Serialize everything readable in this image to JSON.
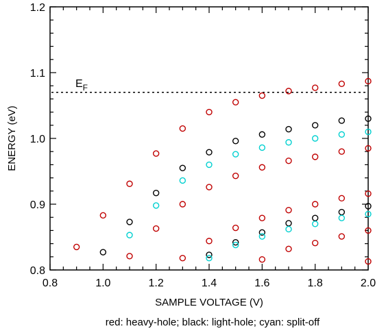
{
  "chart_data": {
    "type": "scatter",
    "xlabel": "SAMPLE VOLTAGE (V)",
    "ylabel": "ENERGY (eV)",
    "xlim": [
      0.8,
      2.0
    ],
    "ylim": [
      0.8,
      1.2
    ],
    "xticks": [
      "0.8",
      "1.0",
      "1.2",
      "1.4",
      "1.6",
      "1.8",
      "2.0"
    ],
    "yticks": [
      "0.8",
      "0.9",
      "1.0",
      "1.1",
      "1.2"
    ],
    "caption": "red: heavy-hole; black: light-hole; cyan: split-off",
    "reference_line": {
      "label_main": "E",
      "label_sub": "F",
      "y": 1.07,
      "style": "dotted"
    },
    "series": [
      {
        "color": "#c00000",
        "points": [
          [
            0.9,
            0.835
          ],
          [
            1.0,
            0.883
          ],
          [
            1.1,
            0.931
          ],
          [
            1.1,
            0.821
          ],
          [
            1.2,
            0.977
          ],
          [
            1.2,
            0.863
          ],
          [
            1.3,
            1.015
          ],
          [
            1.3,
            0.9
          ],
          [
            1.3,
            0.818
          ],
          [
            1.4,
            1.04
          ],
          [
            1.4,
            0.926
          ],
          [
            1.4,
            0.844
          ],
          [
            1.5,
            1.055
          ],
          [
            1.5,
            0.943
          ],
          [
            1.5,
            0.864
          ],
          [
            1.6,
            1.065
          ],
          [
            1.6,
            0.956
          ],
          [
            1.6,
            0.879
          ],
          [
            1.6,
            0.816
          ],
          [
            1.7,
            1.072
          ],
          [
            1.7,
            0.966
          ],
          [
            1.7,
            0.891
          ],
          [
            1.7,
            0.832
          ],
          [
            1.8,
            1.077
          ],
          [
            1.8,
            0.972
          ],
          [
            1.8,
            0.9
          ],
          [
            1.8,
            0.841
          ],
          [
            1.9,
            1.083
          ],
          [
            1.9,
            0.98
          ],
          [
            1.9,
            0.909
          ],
          [
            1.9,
            0.851
          ],
          [
            2.0,
            1.087
          ],
          [
            2.0,
            0.985
          ],
          [
            2.0,
            0.916
          ],
          [
            2.0,
            0.86
          ],
          [
            2.0,
            0.813
          ]
        ]
      },
      {
        "color": "#000000",
        "points": [
          [
            1.0,
            0.827
          ],
          [
            1.1,
            0.873
          ],
          [
            1.2,
            0.917
          ],
          [
            1.3,
            0.955
          ],
          [
            1.4,
            0.979
          ],
          [
            1.4,
            0.823
          ],
          [
            1.5,
            0.996
          ],
          [
            1.5,
            0.842
          ],
          [
            1.6,
            1.006
          ],
          [
            1.6,
            0.857
          ],
          [
            1.7,
            1.014
          ],
          [
            1.7,
            0.871
          ],
          [
            1.8,
            1.02
          ],
          [
            1.8,
            0.879
          ],
          [
            1.9,
            1.027
          ],
          [
            1.9,
            0.888
          ],
          [
            2.0,
            1.03
          ],
          [
            2.0,
            0.897
          ]
        ]
      },
      {
        "color": "#00d0d0",
        "points": [
          [
            1.1,
            0.853
          ],
          [
            1.2,
            0.898
          ],
          [
            1.3,
            0.936
          ],
          [
            1.4,
            0.96
          ],
          [
            1.4,
            0.818
          ],
          [
            1.5,
            0.976
          ],
          [
            1.5,
            0.838
          ],
          [
            1.6,
            0.986
          ],
          [
            1.6,
            0.851
          ],
          [
            1.7,
            0.994
          ],
          [
            1.7,
            0.862
          ],
          [
            1.8,
            1.0
          ],
          [
            1.8,
            0.87
          ],
          [
            1.9,
            1.006
          ],
          [
            1.9,
            0.879
          ],
          [
            2.0,
            1.01
          ],
          [
            2.0,
            0.885
          ]
        ]
      }
    ]
  }
}
